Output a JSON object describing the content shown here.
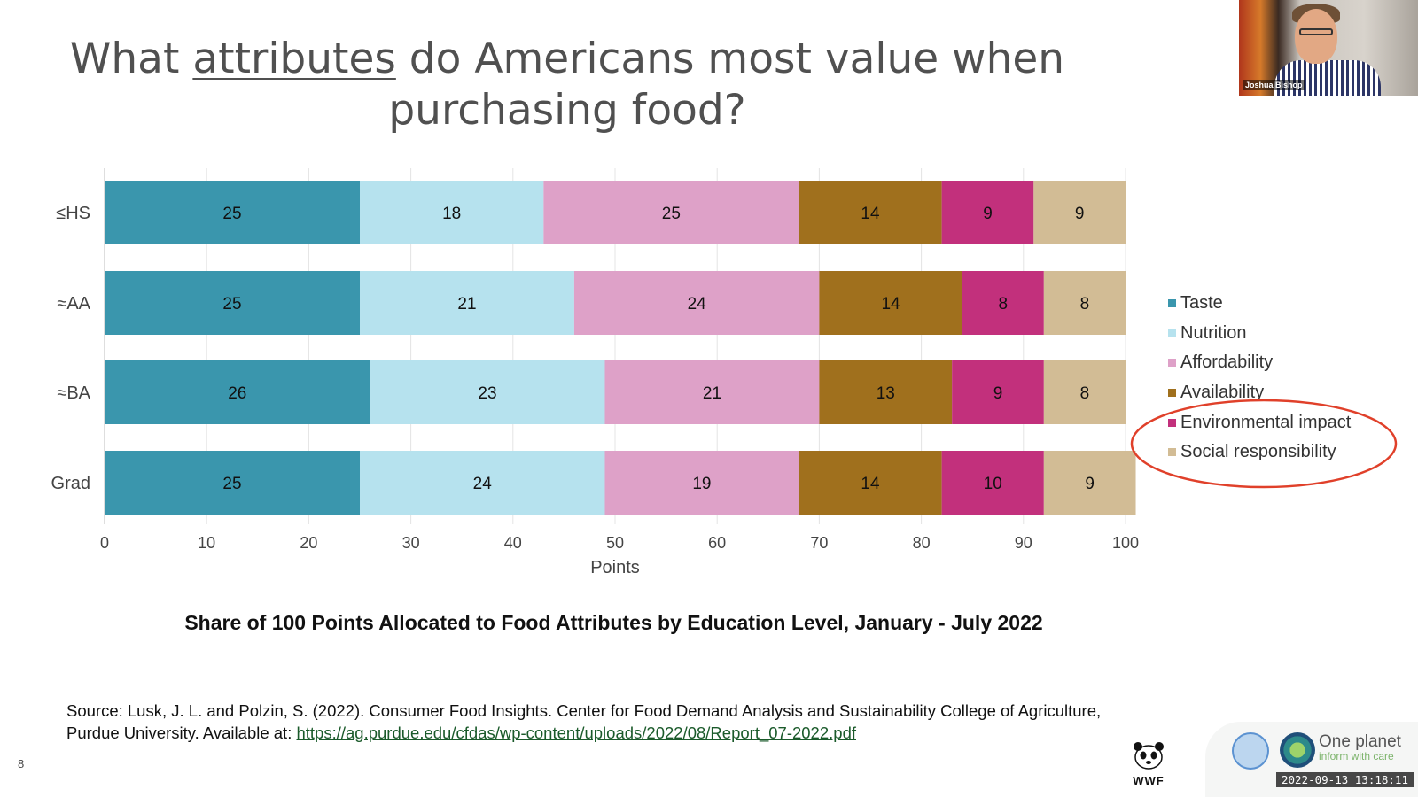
{
  "slide": {
    "title_part1": "What ",
    "title_underlined": "attributes",
    "title_part2": " do Americans most value when purchasing food?",
    "caption": "Share of 100 Points Allocated to Food Attributes by Education Level, January - July 2022",
    "source_text": "Source: Lusk, J. L. and Polzin, S. (2022). Consumer Food Insights. Center for Food Demand Analysis and Sustainability College of Agriculture, Purdue University. Available at: ",
    "source_link": "https://ag.purdue.edu/cfdas/wp-content/uploads/2022/08/Report_07-2022.pdf",
    "page_number": "8"
  },
  "video": {
    "participant_name": "Joshua Bishop"
  },
  "branding": {
    "wwf_label": "WWF",
    "one_planet_title": "One planet",
    "one_planet_subtitle": "inform with care",
    "timestamp": "2022-09-13 13:18:11"
  },
  "chart_data": {
    "type": "bar",
    "orientation": "horizontal",
    "stacked": true,
    "categories": [
      "≤HS",
      "≈AA",
      "≈BA",
      "Grad"
    ],
    "series": [
      {
        "name": "Taste",
        "color": "#3a96ad",
        "values": [
          25,
          25,
          26,
          25
        ]
      },
      {
        "name": "Nutrition",
        "color": "#b6e2ee",
        "values": [
          18,
          21,
          23,
          24
        ]
      },
      {
        "name": "Affordability",
        "color": "#dea1c8",
        "values": [
          25,
          24,
          21,
          19
        ]
      },
      {
        "name": "Availability",
        "color": "#a0701d",
        "values": [
          14,
          14,
          13,
          14
        ]
      },
      {
        "name": "Environmental impact",
        "color": "#c2307c",
        "values": [
          9,
          8,
          9,
          10
        ]
      },
      {
        "name": "Social responsibility",
        "color": "#d2bc95",
        "values": [
          9,
          8,
          8,
          9
        ]
      }
    ],
    "xlabel": "Points",
    "xlim": [
      0,
      100
    ],
    "xticks": [
      0,
      10,
      20,
      30,
      40,
      50,
      60,
      70,
      80,
      90,
      100
    ],
    "grid": true,
    "legend_position": "right",
    "legend_highlight": [
      "Environmental impact",
      "Social responsibility"
    ],
    "highlight_color": "#e0402a"
  }
}
